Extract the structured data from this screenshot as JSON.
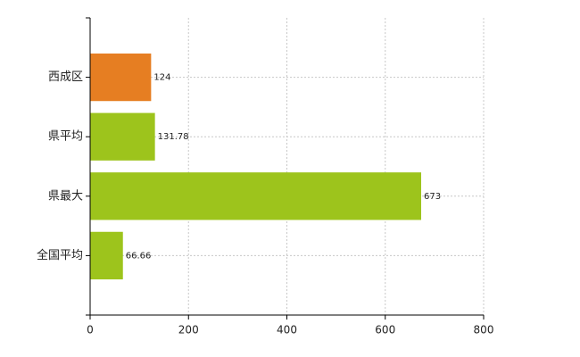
{
  "chart_data": {
    "type": "hbar",
    "categories": [
      "西成区",
      "県平均",
      "県最大",
      "全国平均"
    ],
    "values": [
      124,
      131.78,
      673,
      66.66
    ],
    "colors": [
      "#e67e22",
      "#9dc41c",
      "#9dc41c",
      "#9dc41c"
    ],
    "xlim": [
      0,
      800
    ],
    "xticks": [
      0,
      200,
      400,
      600,
      800
    ],
    "grid": true
  }
}
